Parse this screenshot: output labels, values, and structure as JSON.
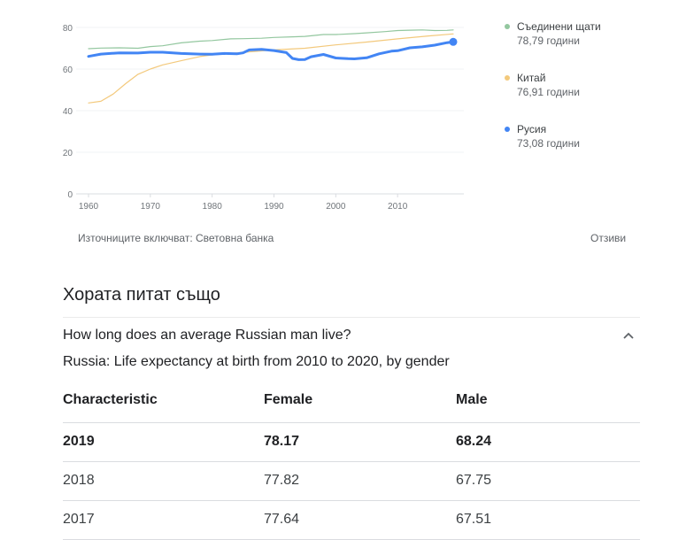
{
  "chart_data": {
    "type": "line",
    "xlim": [
      1960,
      2019
    ],
    "ylim": [
      0,
      80
    ],
    "y_ticks": [
      0,
      20,
      40,
      60,
      80
    ],
    "x_ticks": [
      1960,
      1970,
      1980,
      1990,
      2000,
      2010
    ],
    "x_tick_labels": [
      "1960",
      "1970",
      "1980",
      "1990",
      "2000",
      "2010"
    ],
    "y_tick_labels": [
      "0",
      "20",
      "40",
      "60",
      "80"
    ],
    "grid": true,
    "legend_placement": "right",
    "series": [
      {
        "name": "Съединени щати",
        "value_label": "78,79 години",
        "color": "#93c79f",
        "x": [
          1960,
          1962,
          1965,
          1968,
          1970,
          1972,
          1975,
          1978,
          1980,
          1983,
          1985,
          1988,
          1990,
          1993,
          1995,
          1998,
          2000,
          2003,
          2005,
          2008,
          2010,
          2012,
          2014,
          2016,
          2018,
          2019
        ],
        "values": [
          69.8,
          70.1,
          70.2,
          70.0,
          70.8,
          71.2,
          72.6,
          73.4,
          73.7,
          74.5,
          74.6,
          74.8,
          75.2,
          75.5,
          75.7,
          76.6,
          76.6,
          77.0,
          77.4,
          78.0,
          78.5,
          78.7,
          78.8,
          78.5,
          78.6,
          78.79
        ]
      },
      {
        "name": "Китай",
        "value_label": "76,91 години",
        "color": "#f3c97c",
        "x": [
          1960,
          1962,
          1964,
          1966,
          1968,
          1970,
          1972,
          1975,
          1978,
          1980,
          1985,
          1990,
          1995,
          2000,
          2005,
          2010,
          2015,
          2019
        ],
        "values": [
          43.7,
          44.5,
          48.0,
          53.0,
          57.5,
          60.0,
          62.0,
          64.0,
          66.0,
          66.8,
          68.0,
          69.2,
          70.0,
          71.6,
          73.0,
          74.5,
          75.9,
          76.91
        ]
      },
      {
        "name": "Русия",
        "value_label": "73,08 години",
        "color": "#4285f4",
        "x": [
          1960,
          1962,
          1965,
          1968,
          1970,
          1972,
          1975,
          1978,
          1980,
          1982,
          1984,
          1985,
          1986,
          1988,
          1990,
          1992,
          1993,
          1994,
          1995,
          1996,
          1998,
          2000,
          2002,
          2003,
          2005,
          2007,
          2009,
          2010,
          2012,
          2014,
          2016,
          2018,
          2019
        ],
        "values": [
          66.1,
          67.2,
          67.8,
          67.7,
          68.1,
          68.1,
          67.5,
          67.2,
          67.1,
          67.5,
          67.3,
          67.8,
          69.2,
          69.5,
          68.9,
          67.9,
          65.1,
          64.5,
          64.6,
          65.9,
          67.0,
          65.3,
          65.0,
          64.9,
          65.4,
          67.3,
          68.6,
          68.8,
          70.2,
          70.7,
          71.5,
          72.7,
          73.08
        ]
      }
    ]
  },
  "source_text": "Източниците включват: Световна банка",
  "feedback_label": "Отзиви",
  "paa": {
    "title": "Хората питат също",
    "question": "How long does an average Russian man live?",
    "chevron_icon": "chevron-up-icon",
    "table_caption": "Russia: Life expectancy at birth from 2010 to 2020, by gender",
    "table": {
      "headers": [
        "Characteristic",
        "Female",
        "Male"
      ],
      "rows": [
        [
          "2019",
          "78.17",
          "68.24"
        ],
        [
          "2018",
          "77.82",
          "67.75"
        ],
        [
          "2017",
          "77.64",
          "67.51"
        ]
      ]
    }
  }
}
